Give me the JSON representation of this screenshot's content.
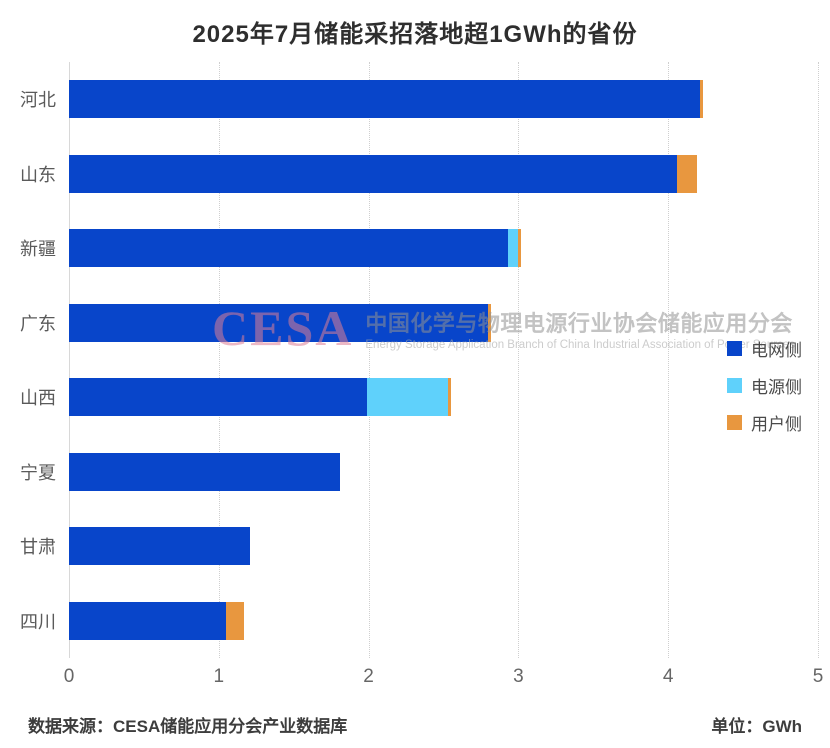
{
  "title": "2025年7月储能采招落地超1GWh的省份",
  "footer": {
    "source": "数据来源：CESA储能应用分会产业数据库",
    "unit": "单位：GWh"
  },
  "watermark": {
    "logo": "CESA",
    "cn": "中国化学与物理电源行业协会储能应用分会",
    "en": "Energy Storage Application Branch of China Industrial Association of Power Sources"
  },
  "colors": {
    "grid_side": "#0845CA",
    "source_side": "#5FD1FB",
    "user_side": "#E8973F",
    "gridline": "#cfcfcf",
    "axis_label": "#666666"
  },
  "chart_data": {
    "type": "bar",
    "orientation": "horizontal",
    "stacked": true,
    "title": "2025年7月储能采招落地超1GWh的省份",
    "unit": "GWh",
    "categories": [
      "河北",
      "山东",
      "新疆",
      "广东",
      "山西",
      "宁夏",
      "甘肃",
      "四川"
    ],
    "series": [
      {
        "name": "电网侧",
        "color": "#0845CA",
        "values": [
          4.21,
          4.06,
          2.93,
          2.8,
          1.99,
          1.81,
          1.21,
          1.05
        ]
      },
      {
        "name": "电源侧",
        "color": "#5FD1FB",
        "values": [
          0,
          0,
          0.07,
          0,
          0.54,
          0,
          0,
          0
        ]
      },
      {
        "name": "用户侧",
        "color": "#E8973F",
        "values": [
          0.02,
          0.13,
          0.02,
          0.02,
          0.02,
          0,
          0,
          0.12
        ]
      }
    ],
    "totals": [
      4.23,
      4.19,
      3.02,
      2.82,
      2.55,
      1.81,
      1.21,
      1.17
    ],
    "xlabel": "",
    "ylabel": "",
    "xlim": [
      0,
      5
    ],
    "xticks": [
      0,
      1,
      2,
      3,
      4,
      5
    ],
    "grid": "vertical-dotted",
    "legend_position": "middle-right"
  }
}
